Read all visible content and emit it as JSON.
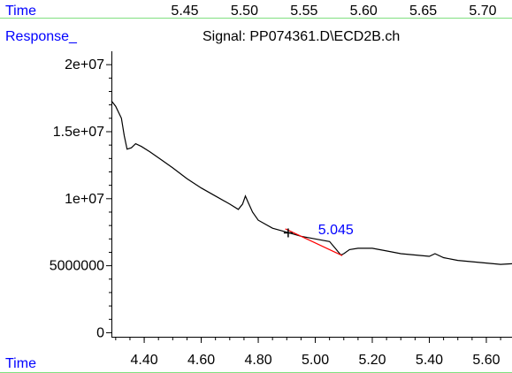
{
  "top_axis": {
    "label": "Time",
    "ticks": [
      "5.45",
      "5.50",
      "5.55",
      "5.60",
      "5.65",
      "5.70"
    ],
    "tick_values": [
      5.45,
      5.5,
      5.55,
      5.6,
      5.65,
      5.7
    ]
  },
  "colors": {
    "axis_label": "#0000ff",
    "annotation": "#0000ff",
    "baseline": "#ff0000",
    "trace": "#000000",
    "separator": "#80e080"
  },
  "chart_data": {
    "type": "line",
    "title": "Signal: PP074361.D\\ECD2B.ch",
    "xlabel": "Time",
    "ylabel": "Response_",
    "xlim": [
      4.285,
      5.69
    ],
    "ylim": [
      -300000,
      21000000
    ],
    "x_ticks": [
      "4.40",
      "4.60",
      "4.80",
      "5.00",
      "5.20",
      "5.40",
      "5.60"
    ],
    "x_tick_values": [
      4.4,
      4.6,
      4.8,
      5.0,
      5.2,
      5.4,
      5.6
    ],
    "y_ticks": [
      "0",
      "5000000",
      "1e+07",
      "1.5e+07",
      "2e+07"
    ],
    "y_tick_values": [
      0,
      5000000,
      10000000,
      15000000,
      20000000
    ],
    "series": [
      {
        "x": [
          4.285,
          4.3,
          4.32,
          4.33,
          4.34,
          4.355,
          4.37,
          4.39,
          4.42,
          4.46,
          4.5,
          4.55,
          4.6,
          4.65,
          4.7,
          4.73,
          4.745,
          4.755,
          4.765,
          4.78,
          4.8,
          4.85,
          4.9,
          4.95,
          5.0,
          5.05,
          5.07,
          5.09,
          5.1,
          5.12,
          5.15,
          5.2,
          5.25,
          5.3,
          5.35,
          5.4,
          5.42,
          5.45,
          5.5,
          5.55,
          5.6,
          5.65,
          5.69
        ],
        "y": [
          17300000,
          16900000,
          16000000,
          14700000,
          13700000,
          13800000,
          14100000,
          13900000,
          13500000,
          12900000,
          12300000,
          11500000,
          10800000,
          10200000,
          9600000,
          9200000,
          9600000,
          10200000,
          9700000,
          9000000,
          8400000,
          7800000,
          7500000,
          7200000,
          7000000,
          6800000,
          6300000,
          5800000,
          5900000,
          6200000,
          6300000,
          6300000,
          6100000,
          5900000,
          5800000,
          5700000,
          5900000,
          5600000,
          5400000,
          5300000,
          5200000,
          5100000,
          5150000
        ]
      }
    ],
    "annotations": [
      {
        "text": "5.045",
        "x": 5.01,
        "y": 7350000
      }
    ],
    "baseline_segment": {
      "x": [
        4.895,
        5.095
      ],
      "y": [
        7750000,
        5750000
      ]
    },
    "marker": {
      "x": 4.905,
      "y": 7450000
    }
  }
}
